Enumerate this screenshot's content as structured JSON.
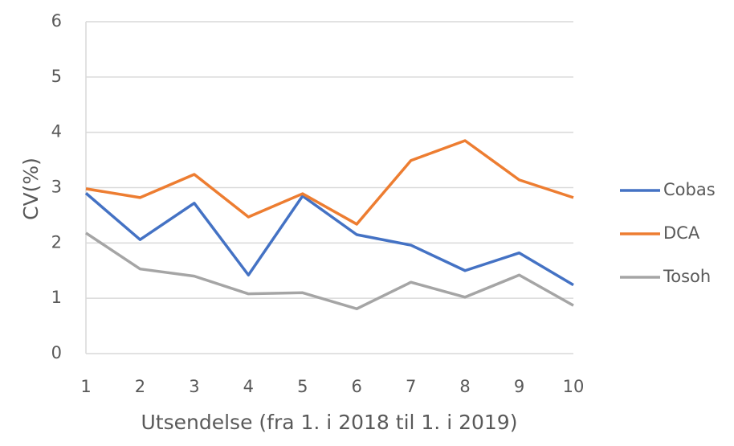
{
  "chart_data": {
    "type": "line",
    "categories": [
      "1",
      "2",
      "3",
      "4",
      "5",
      "6",
      "7",
      "8",
      "9",
      "10"
    ],
    "series": [
      {
        "name": "Cobas",
        "color": "#4472c4",
        "values": [
          2.9,
          2.06,
          2.72,
          1.42,
          2.85,
          2.15,
          1.96,
          1.5,
          1.82,
          1.24
        ]
      },
      {
        "name": "DCA",
        "color": "#ed7d31",
        "values": [
          2.98,
          2.82,
          3.24,
          2.47,
          2.89,
          2.34,
          3.49,
          3.85,
          3.14,
          2.82
        ]
      },
      {
        "name": "Tosoh",
        "color": "#a5a5a5",
        "values": [
          2.18,
          1.53,
          1.4,
          1.08,
          1.1,
          0.81,
          1.29,
          1.02,
          1.42,
          0.87
        ]
      }
    ],
    "ylim": [
      0,
      6
    ],
    "yticks": [
      0,
      1,
      2,
      3,
      4,
      5,
      6
    ],
    "grid": true,
    "xlabel": "Utsendelse (fra 1. i 2018 til 1. i 2019)",
    "ylabel": "CV(%)",
    "legend": "right"
  }
}
